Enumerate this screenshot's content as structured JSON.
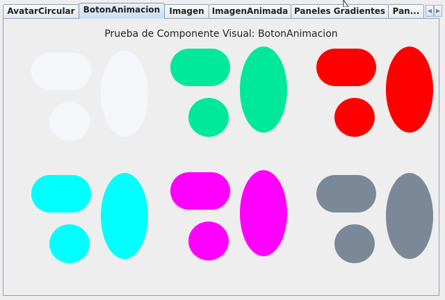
{
  "tabs": [
    {
      "label": "AvatarCircular",
      "selected": false
    },
    {
      "label": "BotonAnimacion",
      "selected": true
    },
    {
      "label": "Imagen",
      "selected": false
    },
    {
      "label": "ImagenAnimada",
      "selected": false
    },
    {
      "label": "Paneles Gradientes",
      "selected": false
    },
    {
      "label": "Pan...",
      "selected": false
    }
  ],
  "scroll": {
    "left_glyph": "◀",
    "right_glyph": "▶"
  },
  "panel": {
    "title": "Prueba de Componente Visual: BotonAnimacion"
  },
  "buttons": [
    {
      "color": "#f4f6f9"
    },
    {
      "color": "#00e89a"
    },
    {
      "color": "#ff0000"
    },
    {
      "color": "#00ffff"
    },
    {
      "color": "#ff00ff"
    },
    {
      "color": "#7b8898"
    }
  ],
  "icons": {
    "cursor": "mouse-cursor-icon"
  }
}
